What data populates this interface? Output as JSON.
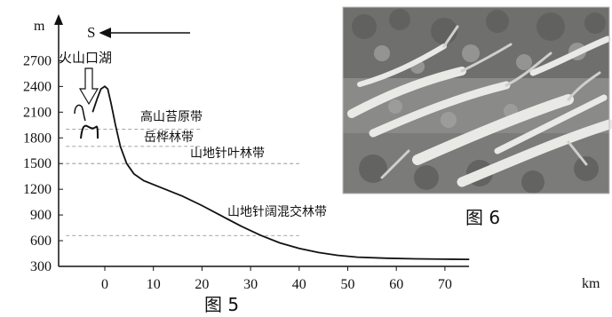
{
  "figure5": {
    "caption": "图 5",
    "y_unit": "m",
    "x_unit": "km",
    "direction_label": "S",
    "crater_label": "火山口湖",
    "zones": [
      "高山苔原带",
      "岳桦林带",
      "山地针叶林带",
      "山地针阔混交林带"
    ],
    "chart_data": {
      "type": "line",
      "x_ticks": [
        0,
        10,
        20,
        30,
        40,
        50,
        60,
        70
      ],
      "y_ticks": [
        300,
        600,
        900,
        1200,
        1500,
        1800,
        2100,
        2400,
        2700
      ],
      "xlim": [
        -10,
        78
      ],
      "ylim": [
        300,
        2800
      ],
      "boundary_lines": [
        {
          "elevation": 1900,
          "x_from": -8,
          "x_to": 20
        },
        {
          "elevation": 1700,
          "x_from": -8,
          "x_to": 20
        },
        {
          "elevation": 1500,
          "x_from": -8,
          "x_to": 40
        },
        {
          "elevation": 660,
          "x_from": -8,
          "x_to": 40
        }
      ],
      "profile": [
        {
          "x": -2.5,
          "y": 2100
        },
        {
          "x": -1.6,
          "y": 2250
        },
        {
          "x": -0.8,
          "y": 2370
        },
        {
          "x": 0,
          "y": 2400
        },
        {
          "x": 0.6,
          "y": 2370
        },
        {
          "x": 1.3,
          "y": 2200
        },
        {
          "x": 2.2,
          "y": 1950
        },
        {
          "x": 3.2,
          "y": 1700
        },
        {
          "x": 4.5,
          "y": 1500
        },
        {
          "x": 6,
          "y": 1380
        },
        {
          "x": 8,
          "y": 1300
        },
        {
          "x": 12,
          "y": 1210
        },
        {
          "x": 16,
          "y": 1120
        },
        {
          "x": 20,
          "y": 1010
        },
        {
          "x": 24,
          "y": 890
        },
        {
          "x": 28,
          "y": 770
        },
        {
          "x": 32,
          "y": 665
        },
        {
          "x": 36,
          "y": 575
        },
        {
          "x": 40,
          "y": 510
        },
        {
          "x": 44,
          "y": 462
        },
        {
          "x": 48,
          "y": 428
        },
        {
          "x": 52,
          "y": 408
        },
        {
          "x": 58,
          "y": 395
        },
        {
          "x": 64,
          "y": 388
        },
        {
          "x": 70,
          "y": 384
        },
        {
          "x": 75,
          "y": 382
        }
      ]
    }
  },
  "figure6": {
    "caption": "图 6"
  }
}
